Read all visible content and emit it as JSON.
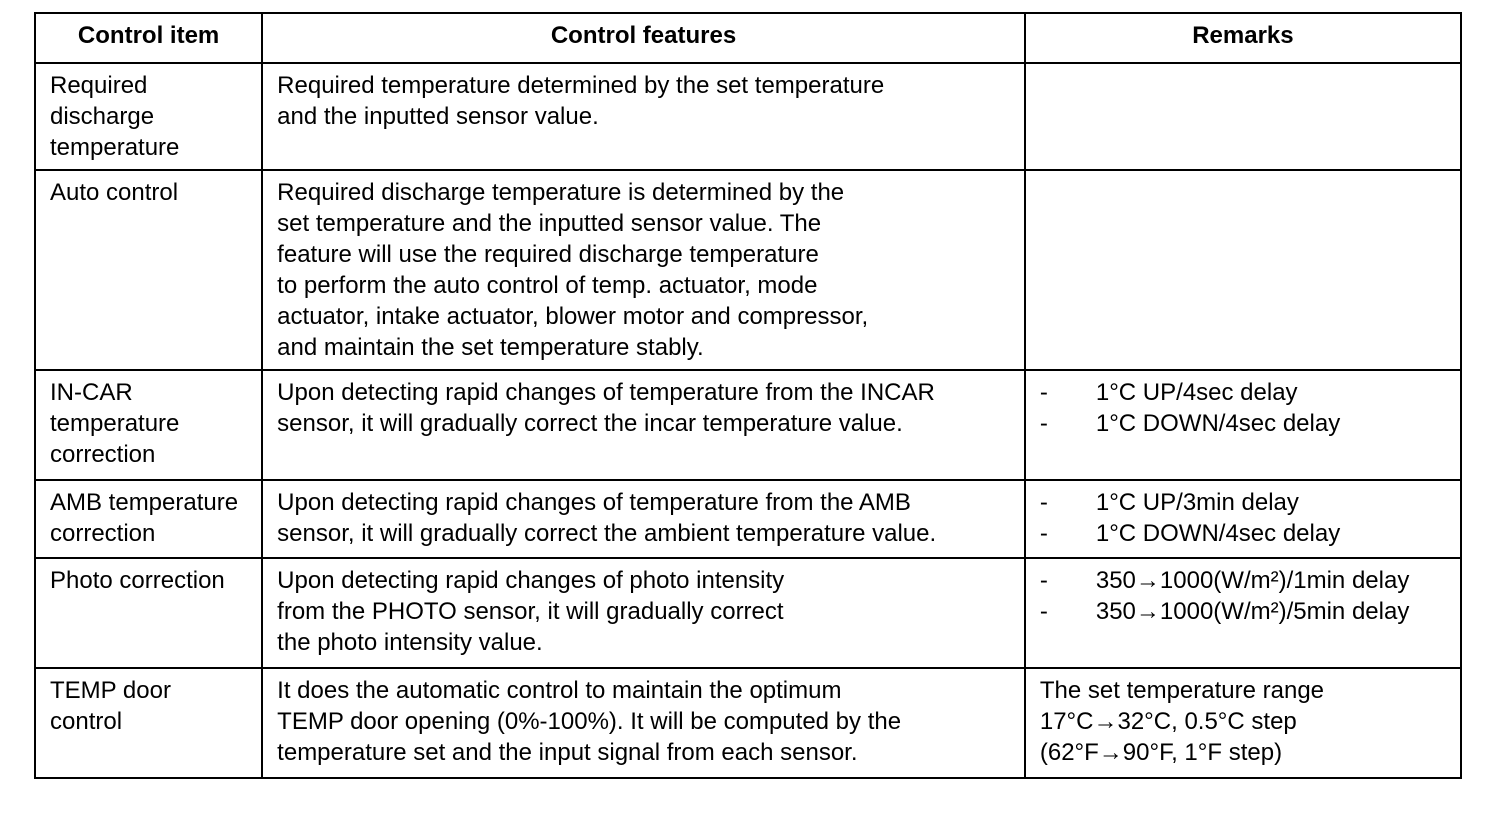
{
  "headers": {
    "control_item": "Control item",
    "control_features": "Control features",
    "remarks": "Remarks"
  },
  "rows": [
    {
      "item": [
        "Required",
        "discharge",
        "temperature"
      ],
      "features": [
        "Required temperature determined by the set temperature",
        "and the inputted sensor value."
      ],
      "remarks": []
    },
    {
      "item": [
        "Auto control"
      ],
      "features": [
        "Required discharge temperature is determined by the",
        "set temperature and the inputted sensor value.  The",
        "feature will use the required discharge temperature",
        "to perform the auto control of temp.  actuator, mode",
        "actuator, intake actuator, blower motor and compressor,",
        "and maintain the set temperature stably."
      ],
      "remarks": []
    },
    {
      "item": [
        "IN-CAR",
        "temperature",
        "correction"
      ],
      "features": [
        "Upon detecting rapid changes of temperature from the INCAR",
        "sensor, it will gradually correct the incar temperature value."
      ],
      "remarks": [
        {
          "dash": "-",
          "text": "1°C UP/4sec delay"
        },
        {
          "dash": "-",
          "text": "1°C DOWN/4sec delay"
        }
      ]
    },
    {
      "item": [
        "AMB temperature",
        "correction"
      ],
      "features": [
        "Upon detecting rapid changes of temperature from the AMB",
        "sensor, it will gradually correct the ambient temperature value."
      ],
      "remarks": [
        {
          "dash": "-",
          "text": "1°C UP/3min delay"
        },
        {
          "dash": "-",
          "text": "1°C DOWN/4sec delay"
        }
      ]
    },
    {
      "item": [
        "Photo correction"
      ],
      "features": [
        "Upon detecting rapid changes of photo intensity",
        "from the PHOTO sensor, it will gradually correct",
        "the photo intensity value."
      ],
      "remarks": [
        {
          "dash": "-",
          "text": "350→1000(W/m²)/1min delay"
        },
        {
          "dash": "-",
          "text": "350→1000(W/m²)/5min delay"
        }
      ]
    },
    {
      "item": [
        "TEMP  door",
        "control"
      ],
      "features": [
        "It does the automatic control to maintain the optimum",
        "TEMP door opening (0%-100%).  It will be computed by the",
        "temperature set and the input signal from each sensor."
      ],
      "remarks_plain": [
        "The  set  temperature  range",
        "17°C→32°C,  0.5°C  step",
        "(62°F→90°F,  1°F  step)"
      ]
    }
  ]
}
